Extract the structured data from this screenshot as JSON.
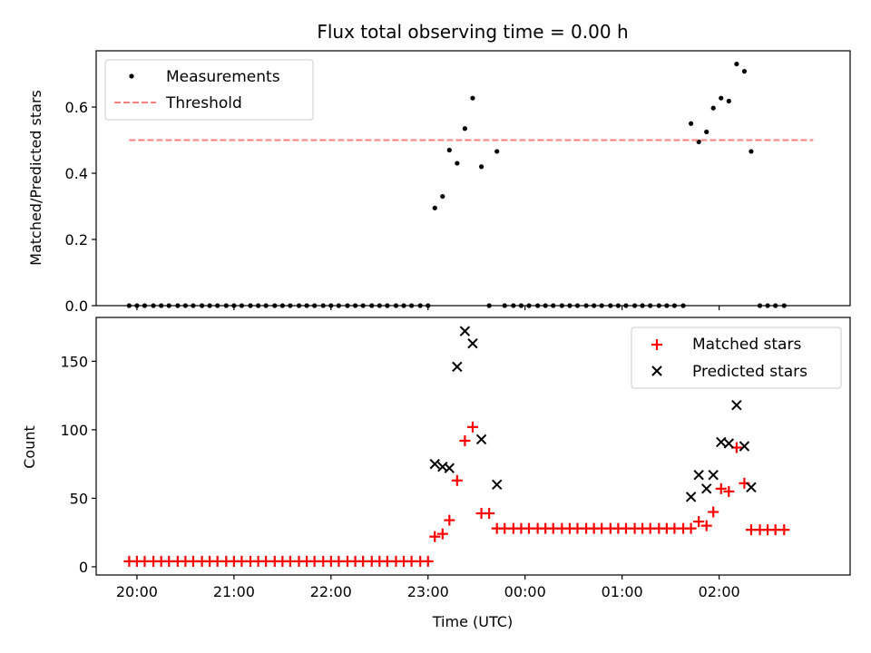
{
  "chart_data": [
    {
      "type": "scatter",
      "title": "Flux total observing time = 0.00 h",
      "xlabel": "",
      "ylabel": "Matched/Predicted stars",
      "ylim": [
        0,
        0.77
      ],
      "yticks": [
        "0.0",
        "0.2",
        "0.4",
        "0.6"
      ],
      "ytick_values": [
        0,
        0.2,
        0.4,
        0.6
      ],
      "x_unit": "hours after 19:00 UTC",
      "xlim": [
        0.58,
        8.35
      ],
      "grid": false,
      "legend": "upper-left",
      "series": [
        {
          "name": "Measurements",
          "marker": "dot",
          "color": "#000000",
          "points": [
            [
              0.92,
              0
            ],
            [
              1.0,
              0
            ],
            [
              1.08,
              0
            ],
            [
              1.17,
              0
            ],
            [
              1.25,
              0
            ],
            [
              1.33,
              0
            ],
            [
              1.42,
              0
            ],
            [
              1.5,
              0
            ],
            [
              1.58,
              0
            ],
            [
              1.67,
              0
            ],
            [
              1.75,
              0
            ],
            [
              1.83,
              0
            ],
            [
              1.92,
              0
            ],
            [
              2.0,
              0
            ],
            [
              2.08,
              0
            ],
            [
              2.17,
              0
            ],
            [
              2.25,
              0
            ],
            [
              2.33,
              0
            ],
            [
              2.42,
              0
            ],
            [
              2.5,
              0
            ],
            [
              2.58,
              0
            ],
            [
              2.67,
              0
            ],
            [
              2.75,
              0
            ],
            [
              2.83,
              0
            ],
            [
              2.92,
              0
            ],
            [
              3.0,
              0
            ],
            [
              3.08,
              0
            ],
            [
              3.17,
              0
            ],
            [
              3.25,
              0
            ],
            [
              3.33,
              0
            ],
            [
              3.42,
              0
            ],
            [
              3.5,
              0
            ],
            [
              3.58,
              0
            ],
            [
              3.67,
              0
            ],
            [
              3.75,
              0
            ],
            [
              3.83,
              0
            ],
            [
              3.92,
              0
            ],
            [
              4.0,
              0
            ],
            [
              4.07,
              0.295
            ],
            [
              4.15,
              0.33
            ],
            [
              4.22,
              0.47
            ],
            [
              4.3,
              0.43
            ],
            [
              4.38,
              0.535
            ],
            [
              4.46,
              0.627
            ],
            [
              4.55,
              0.42
            ],
            [
              4.63,
              0
            ],
            [
              4.71,
              0.466
            ],
            [
              4.79,
              0
            ],
            [
              4.88,
              0
            ],
            [
              4.96,
              0
            ],
            [
              5.04,
              0
            ],
            [
              5.13,
              0
            ],
            [
              5.21,
              0
            ],
            [
              5.29,
              0
            ],
            [
              5.38,
              0
            ],
            [
              5.46,
              0
            ],
            [
              5.54,
              0
            ],
            [
              5.63,
              0
            ],
            [
              5.71,
              0
            ],
            [
              5.79,
              0
            ],
            [
              5.88,
              0
            ],
            [
              5.96,
              0
            ],
            [
              6.04,
              0
            ],
            [
              6.13,
              0
            ],
            [
              6.21,
              0
            ],
            [
              6.29,
              0
            ],
            [
              6.38,
              0
            ],
            [
              6.46,
              0
            ],
            [
              6.54,
              0
            ],
            [
              6.63,
              0
            ],
            [
              6.71,
              0.55
            ],
            [
              6.79,
              0.495
            ],
            [
              6.87,
              0.525
            ],
            [
              6.94,
              0.597
            ],
            [
              7.02,
              0.627
            ],
            [
              7.1,
              0.618
            ],
            [
              7.18,
              0.73
            ],
            [
              7.26,
              0.708
            ],
            [
              7.33,
              0.466
            ],
            [
              7.42,
              0
            ],
            [
              7.5,
              0
            ],
            [
              7.58,
              0
            ],
            [
              7.67,
              0
            ]
          ]
        },
        {
          "name": "Threshold",
          "marker": "dashed-line",
          "color": "#ff7f7f",
          "x": [
            0.92,
            7.97
          ],
          "y": [
            0.5,
            0.5
          ]
        }
      ]
    },
    {
      "type": "scatter",
      "title": "",
      "xlabel": "Time (UTC)",
      "ylabel": "Count",
      "ylim": [
        -6,
        182
      ],
      "yticks": [
        "0",
        "50",
        "100",
        "150"
      ],
      "ytick_values": [
        0,
        50,
        100,
        150
      ],
      "x_unit": "hours after 19:00 UTC",
      "xlim": [
        0.58,
        8.35
      ],
      "xticks": [
        "20:00",
        "21:00",
        "22:00",
        "23:00",
        "00:00",
        "01:00",
        "02:00"
      ],
      "xtick_values": [
        1,
        2,
        3,
        4,
        5,
        6,
        7
      ],
      "grid": false,
      "legend": "upper-right",
      "series": [
        {
          "name": "Matched stars",
          "marker": "plus",
          "color": "#ff0000",
          "points": [
            [
              0.92,
              4
            ],
            [
              1.0,
              4
            ],
            [
              1.08,
              4
            ],
            [
              1.17,
              4
            ],
            [
              1.25,
              4
            ],
            [
              1.33,
              4
            ],
            [
              1.42,
              4
            ],
            [
              1.5,
              4
            ],
            [
              1.58,
              4
            ],
            [
              1.67,
              4
            ],
            [
              1.75,
              4
            ],
            [
              1.83,
              4
            ],
            [
              1.92,
              4
            ],
            [
              2.0,
              4
            ],
            [
              2.08,
              4
            ],
            [
              2.17,
              4
            ],
            [
              2.25,
              4
            ],
            [
              2.33,
              4
            ],
            [
              2.42,
              4
            ],
            [
              2.5,
              4
            ],
            [
              2.58,
              4
            ],
            [
              2.67,
              4
            ],
            [
              2.75,
              4
            ],
            [
              2.83,
              4
            ],
            [
              2.92,
              4
            ],
            [
              3.0,
              4
            ],
            [
              3.08,
              4
            ],
            [
              3.17,
              4
            ],
            [
              3.25,
              4
            ],
            [
              3.33,
              4
            ],
            [
              3.42,
              4
            ],
            [
              3.5,
              4
            ],
            [
              3.58,
              4
            ],
            [
              3.67,
              4
            ],
            [
              3.75,
              4
            ],
            [
              3.83,
              4
            ],
            [
              3.92,
              4
            ],
            [
              4.0,
              4
            ],
            [
              4.07,
              22
            ],
            [
              4.15,
              24
            ],
            [
              4.22,
              34
            ],
            [
              4.3,
              63
            ],
            [
              4.38,
              92
            ],
            [
              4.46,
              102
            ],
            [
              4.55,
              39
            ],
            [
              4.63,
              39
            ],
            [
              4.71,
              28
            ],
            [
              4.79,
              28
            ],
            [
              4.88,
              28
            ],
            [
              4.96,
              28
            ],
            [
              5.04,
              28
            ],
            [
              5.13,
              28
            ],
            [
              5.21,
              28
            ],
            [
              5.29,
              28
            ],
            [
              5.38,
              28
            ],
            [
              5.46,
              28
            ],
            [
              5.54,
              28
            ],
            [
              5.63,
              28
            ],
            [
              5.71,
              28
            ],
            [
              5.79,
              28
            ],
            [
              5.88,
              28
            ],
            [
              5.96,
              28
            ],
            [
              6.04,
              28
            ],
            [
              6.13,
              28
            ],
            [
              6.21,
              28
            ],
            [
              6.29,
              28
            ],
            [
              6.38,
              28
            ],
            [
              6.46,
              28
            ],
            [
              6.54,
              28
            ],
            [
              6.63,
              28
            ],
            [
              6.71,
              28
            ],
            [
              6.79,
              33
            ],
            [
              6.87,
              30
            ],
            [
              6.94,
              40
            ],
            [
              7.02,
              57
            ],
            [
              7.1,
              55
            ],
            [
              7.18,
              87
            ],
            [
              7.26,
              61
            ],
            [
              7.33,
              27
            ],
            [
              7.42,
              27
            ],
            [
              7.5,
              27
            ],
            [
              7.58,
              27
            ],
            [
              7.67,
              27
            ]
          ]
        },
        {
          "name": "Predicted stars",
          "marker": "x",
          "color": "#000000",
          "points": [
            [
              4.07,
              75
            ],
            [
              4.15,
              73
            ],
            [
              4.22,
              72
            ],
            [
              4.3,
              146
            ],
            [
              4.38,
              172
            ],
            [
              4.46,
              163
            ],
            [
              4.55,
              93
            ],
            [
              4.71,
              60
            ],
            [
              6.71,
              51
            ],
            [
              6.79,
              67
            ],
            [
              6.87,
              57
            ],
            [
              6.94,
              67
            ],
            [
              7.02,
              91
            ],
            [
              7.1,
              90
            ],
            [
              7.18,
              118
            ],
            [
              7.26,
              88
            ],
            [
              7.33,
              58
            ]
          ]
        }
      ]
    }
  ]
}
